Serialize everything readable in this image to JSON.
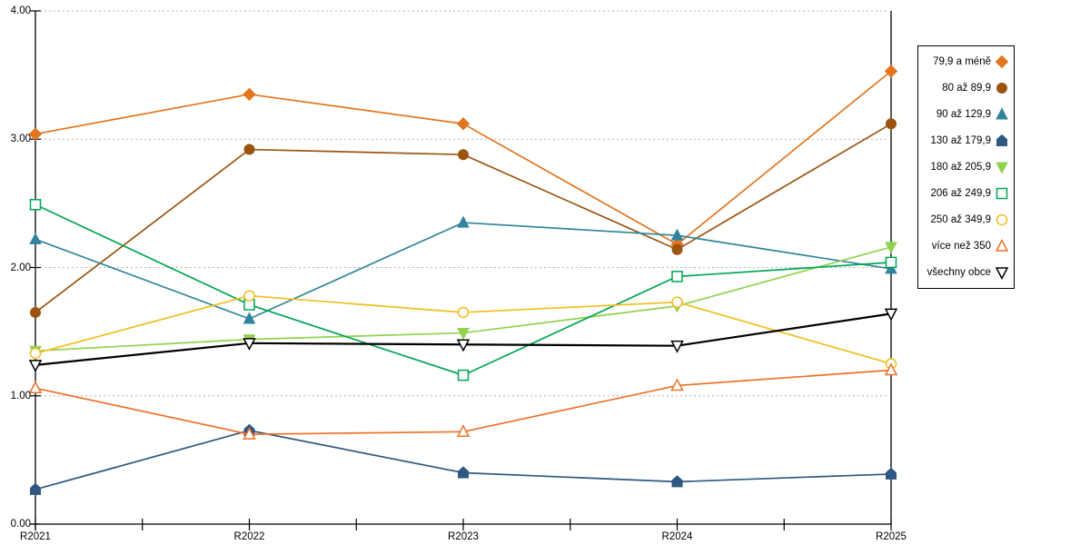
{
  "chart_data": {
    "type": "line",
    "title": "",
    "xlabel": "",
    "ylabel": "",
    "ylim": [
      0,
      4
    ],
    "grid": "horizontal-dotted",
    "legend_position": "right",
    "y_ticks": [
      "0.00",
      "1.00",
      "2.00",
      "3.00",
      "4.00"
    ],
    "x_labels": [
      "R2021",
      "R2022",
      "R2023",
      "R2024",
      "R2025"
    ],
    "series": [
      {
        "name": "79,9 a méně",
        "marker": "diamond",
        "filled": true,
        "color": "#E2751D",
        "values": [
          3.04,
          3.35,
          3.12,
          2.18,
          3.53
        ]
      },
      {
        "name": "80 až 89,9",
        "marker": "circle",
        "filled": true,
        "color": "#9A5410",
        "values": [
          1.65,
          2.92,
          2.88,
          2.14,
          3.12
        ]
      },
      {
        "name": "90 až 129,9",
        "marker": "triangle-up",
        "filled": true,
        "color": "#31849B",
        "values": [
          2.22,
          1.6,
          2.35,
          2.25,
          1.99
        ]
      },
      {
        "name": "130 až 179,9",
        "marker": "pentagon",
        "filled": true,
        "color": "#2E5881",
        "values": [
          0.27,
          0.73,
          0.4,
          0.33,
          0.39
        ]
      },
      {
        "name": "180 až 205,9",
        "marker": "triangle-down",
        "filled": true,
        "color": "#92D050",
        "values": [
          1.35,
          1.44,
          1.49,
          1.7,
          2.16
        ]
      },
      {
        "name": "206 až 249,9",
        "marker": "square",
        "filled": false,
        "color": "#00A651",
        "values": [
          2.49,
          1.71,
          1.16,
          1.93,
          2.04
        ]
      },
      {
        "name": "250 až 349,9",
        "marker": "circle",
        "filled": false,
        "color": "#F0BE1E",
        "values": [
          1.33,
          1.78,
          1.65,
          1.73,
          1.25
        ]
      },
      {
        "name": "více než 350",
        "marker": "triangle-up",
        "filled": false,
        "color": "#ED7128",
        "values": [
          1.06,
          0.7,
          0.72,
          1.08,
          1.2
        ]
      },
      {
        "name": "všechny obce",
        "marker": "triangle-down",
        "filled": false,
        "color": "#000000",
        "values": [
          1.24,
          1.41,
          1.4,
          1.39,
          1.64
        ]
      }
    ]
  }
}
